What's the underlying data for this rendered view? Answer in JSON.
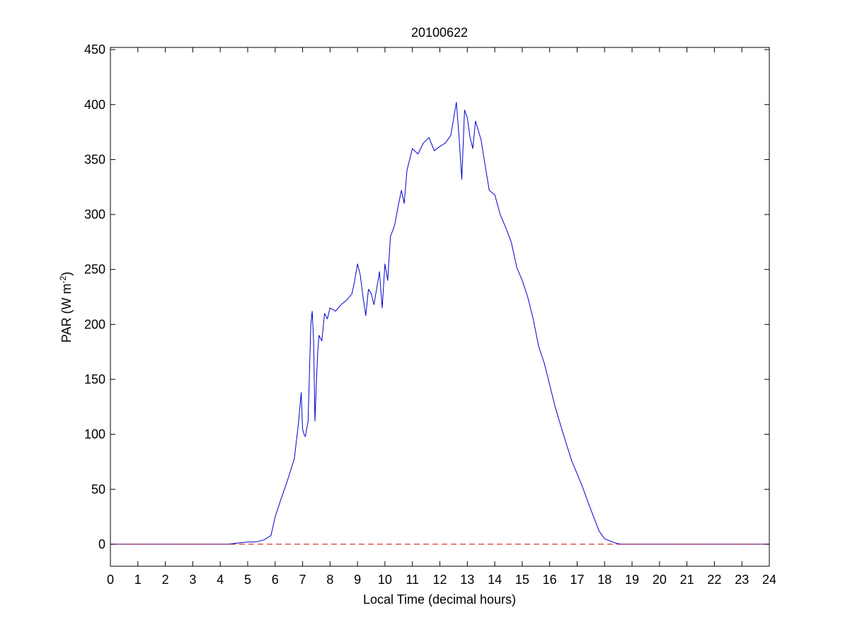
{
  "chart_data": {
    "type": "line",
    "title": "20100622",
    "xlabel": "Local Time (decimal hours)",
    "ylabel_main": "PAR (W m",
    "ylabel_sup": "-2",
    "ylabel_close": ")",
    "xlim": [
      0,
      24
    ],
    "ylim": [
      -20,
      452
    ],
    "xticks": [
      "0",
      "1",
      "2",
      "3",
      "4",
      "5",
      "6",
      "7",
      "8",
      "9",
      "10",
      "11",
      "12",
      "13",
      "14",
      "15",
      "16",
      "17",
      "18",
      "19",
      "20",
      "21",
      "22",
      "23",
      "24"
    ],
    "yticks": [
      "0",
      "50",
      "100",
      "150",
      "200",
      "250",
      "300",
      "350",
      "400",
      "450"
    ],
    "grid": false,
    "series": [
      {
        "color": "#0000cc",
        "x": [
          0,
          4.3,
          4.6,
          5.0,
          5.3,
          5.6,
          5.85,
          6.0,
          6.2,
          6.45,
          6.7,
          6.85,
          6.95,
          7.0,
          7.05,
          7.1,
          7.2,
          7.3,
          7.35,
          7.4,
          7.45,
          7.5,
          7.55,
          7.6,
          7.7,
          7.8,
          7.9,
          8.0,
          8.2,
          8.4,
          8.6,
          8.8,
          8.9,
          9.0,
          9.1,
          9.2,
          9.3,
          9.4,
          9.5,
          9.6,
          9.8,
          9.9,
          10.0,
          10.1,
          10.2,
          10.35,
          10.5,
          10.6,
          10.7,
          10.8,
          11.0,
          11.2,
          11.4,
          11.6,
          11.8,
          12.0,
          12.2,
          12.4,
          12.6,
          12.7,
          12.8,
          12.9,
          13.0,
          13.1,
          13.2,
          13.3,
          13.5,
          13.6,
          13.8,
          14.0,
          14.2,
          14.4,
          14.6,
          14.8,
          15.0,
          15.2,
          15.4,
          15.6,
          15.8,
          16.0,
          16.2,
          16.4,
          16.6,
          16.8,
          17.0,
          17.2,
          17.4,
          17.6,
          17.8,
          18.0,
          18.2,
          18.4,
          18.6,
          18.8,
          19.0,
          19.2,
          19.4,
          19.6,
          19.8,
          20.0,
          20.3,
          20.6,
          21,
          22,
          23,
          24
        ],
        "y": [
          0,
          0,
          1,
          2,
          2,
          4,
          8,
          25,
          40,
          58,
          78,
          110,
          138,
          105,
          100,
          98,
          112,
          200,
          212,
          185,
          112,
          145,
          175,
          190,
          185,
          210,
          205,
          215,
          212,
          218,
          222,
          228,
          240,
          255,
          245,
          225,
          208,
          232,
          228,
          218,
          248,
          215,
          255,
          240,
          280,
          290,
          310,
          322,
          310,
          340,
          360,
          355,
          365,
          370,
          358,
          362,
          365,
          372,
          402,
          370,
          332,
          395,
          388,
          370,
          360,
          385,
          368,
          352,
          322,
          318,
          300,
          288,
          275,
          252,
          240,
          225,
          205,
          180,
          165,
          145,
          125,
          108,
          92,
          76,
          64,
          52,
          38,
          25,
          12,
          5,
          3,
          1,
          0,
          0,
          0,
          0,
          0,
          0,
          0,
          0,
          0,
          0,
          0,
          0,
          0,
          0
        ]
      },
      {
        "color": "#cc0000",
        "style": "dashed",
        "x": [
          0,
          24
        ],
        "y": [
          0,
          0
        ]
      }
    ]
  }
}
